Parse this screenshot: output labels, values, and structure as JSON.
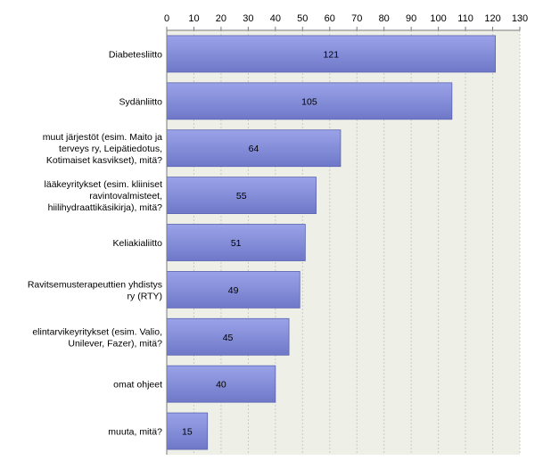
{
  "chart_data": {
    "type": "bar",
    "orientation": "horizontal",
    "categories": [
      [
        "Diabetesliitto"
      ],
      [
        "Sydänliitto"
      ],
      [
        "muut järjestöt (esim. Maito ja",
        "terveys ry, Leipätiedotus,",
        "Kotimaiset kasvikset), mitä?"
      ],
      [
        "lääkeyritykset (esim. kliiniset",
        "ravintovalmisteet,",
        "hiilihydraattikäsikirja), mitä?"
      ],
      [
        "Keliakialiitto"
      ],
      [
        "Ravitsemusterapeuttien yhdistys",
        "ry (RTY)"
      ],
      [
        "elintarvikeyritykset (esim. Valio,",
        "Unilever, Fazer), mitä?"
      ],
      [
        "omat ohjeet"
      ],
      [
        "muuta, mitä?"
      ]
    ],
    "values": [
      121,
      105,
      64,
      55,
      51,
      49,
      45,
      40,
      15
    ],
    "data_labels": [
      "121",
      "105",
      "64",
      "55",
      "51",
      "49",
      "45",
      "40",
      "15"
    ],
    "xlim": [
      0,
      130
    ],
    "ticks": [
      "0",
      "10",
      "20",
      "30",
      "40",
      "50",
      "60",
      "70",
      "80",
      "90",
      "100",
      "110",
      "120",
      "130"
    ],
    "tick_values": [
      0,
      10,
      20,
      30,
      40,
      50,
      60,
      70,
      80,
      90,
      100,
      110,
      120,
      130
    ],
    "x_axis_position": "top",
    "grid": true,
    "legend": "none",
    "colors": {
      "bar_light": "#9aa3e8",
      "bar_dark": "#6f78c8",
      "bar_stroke": "#5a63b0",
      "plot_bg": "#eef0e8",
      "grid": "#c8ccc0",
      "axis": "#7a7a7a"
    }
  }
}
